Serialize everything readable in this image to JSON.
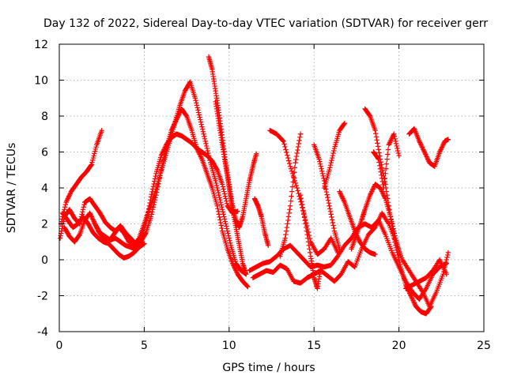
{
  "chart_data": {
    "type": "scatter",
    "title": "Day 132 of 2022, Sidereal Day-to-day VTEC variation (SDTVAR) for receiver gerr",
    "xlabel": "GPS time / hours",
    "ylabel": "SDTVAR / TECUs",
    "xlim": [
      0,
      25
    ],
    "ylim": [
      -4,
      12
    ],
    "x_ticks": [
      "0",
      "5",
      "10",
      "15",
      "20",
      "25"
    ],
    "y_ticks": [
      "-4",
      "-2",
      "0",
      "2",
      "4",
      "6",
      "8",
      "10",
      "12"
    ],
    "grid": true,
    "legend": "none",
    "marker": "plus",
    "color": "#ff0000",
    "series": [
      {
        "x": [
          0.05,
          0.3,
          0.6,
          0.9,
          1.2,
          1.5,
          1.8,
          2.1,
          2.4,
          2.7,
          3.0,
          3.3,
          3.6,
          3.9,
          4.2,
          4.5,
          4.8,
          5.1,
          5.4,
          5.7,
          6.0,
          6.3,
          6.6,
          6.9,
          7.2,
          7.5,
          7.8,
          8.1,
          8.4,
          8.7,
          9.0,
          9.3,
          9.6,
          9.9,
          10.2,
          10.5
        ],
        "y": [
          1.2,
          2.4,
          2.8,
          2.3,
          2.0,
          3.2,
          3.4,
          3.0,
          2.6,
          2.1,
          1.8,
          1.6,
          1.9,
          1.5,
          1.2,
          0.9,
          1.1,
          2.0,
          3.5,
          4.8,
          5.8,
          6.4,
          6.8,
          7.0,
          6.9,
          6.7,
          6.5,
          6.2,
          6.0,
          5.8,
          5.5,
          5.0,
          4.2,
          3.0,
          2.6,
          2.7
        ]
      },
      {
        "x": [
          0.1,
          0.4,
          0.7,
          1.0,
          1.3,
          1.6,
          1.9,
          2.2,
          2.5
        ],
        "y": [
          2.0,
          3.2,
          3.8,
          4.2,
          4.6,
          4.9,
          5.3,
          6.4,
          7.2
        ]
      },
      {
        "x": [
          0.2,
          0.5,
          0.8,
          1.1,
          1.4,
          1.7,
          2.0,
          2.3,
          2.6,
          2.9,
          3.2,
          3.5,
          3.8,
          4.1,
          4.4,
          4.7,
          5.0
        ],
        "y": [
          2.6,
          2.2,
          1.8,
          2.0,
          2.4,
          2.0,
          1.5,
          1.2,
          1.0,
          0.9,
          0.6,
          0.3,
          0.1,
          0.2,
          0.4,
          0.7,
          0.9
        ]
      },
      {
        "x": [
          0.3,
          0.6,
          0.9,
          1.2,
          1.5,
          1.8,
          2.1,
          2.4,
          2.7,
          3.0,
          3.3,
          3.6,
          3.9,
          4.2,
          4.5,
          4.8,
          5.1,
          5.4,
          5.7,
          6.0,
          6.3,
          6.6,
          6.9,
          7.2,
          7.5,
          7.8,
          8.1,
          8.4,
          8.7,
          9.0,
          9.3,
          9.6,
          9.9,
          10.2,
          10.5,
          10.8,
          11.1
        ],
        "y": [
          1.8,
          1.3,
          1.0,
          1.4,
          2.2,
          2.6,
          2.0,
          1.5,
          1.3,
          1.1,
          1.2,
          1.0,
          0.8,
          0.7,
          0.6,
          1.0,
          1.5,
          2.4,
          3.6,
          5.0,
          6.2,
          7.2,
          7.8,
          8.4,
          8.0,
          7.2,
          6.2,
          5.6,
          4.8,
          4.0,
          3.0,
          1.6,
          0.6,
          -0.2,
          -0.8,
          -1.2,
          -1.5
        ]
      },
      {
        "x": [
          2.0,
          2.3,
          2.6,
          2.9,
          3.2,
          3.5,
          3.8,
          4.1,
          4.4,
          4.7,
          5.0,
          5.3,
          5.6,
          5.9,
          6.2,
          6.5,
          6.8,
          7.1,
          7.4,
          7.7,
          8.0,
          8.3,
          8.6,
          8.9,
          9.2,
          9.5,
          9.8,
          10.1,
          10.4,
          10.7,
          11.0
        ],
        "y": [
          2.2,
          1.6,
          1.2,
          1.0,
          1.4,
          1.8,
          1.5,
          1.0,
          0.8,
          1.2,
          2.0,
          2.8,
          3.6,
          4.6,
          5.6,
          6.6,
          7.6,
          8.6,
          9.4,
          9.9,
          9.0,
          7.8,
          6.6,
          5.4,
          4.4,
          3.2,
          2.0,
          0.8,
          -0.2,
          -0.6,
          -0.8
        ]
      },
      {
        "x": [
          8.8,
          9.0,
          9.2,
          9.4,
          9.6,
          9.8,
          10.0,
          10.2,
          10.4,
          10.6,
          10.8,
          11.0,
          11.2,
          11.4,
          11.6
        ],
        "y": [
          11.3,
          10.6,
          9.4,
          8.2,
          6.8,
          5.4,
          4.2,
          3.0,
          2.2,
          1.8,
          2.4,
          3.4,
          4.4,
          5.2,
          5.9
        ]
      },
      {
        "x": [
          9.2,
          9.4,
          9.6,
          9.8,
          10.0,
          10.2,
          10.4,
          10.6,
          10.8,
          11.0
        ],
        "y": [
          8.8,
          7.6,
          6.4,
          5.2,
          4.0,
          2.8,
          1.8,
          0.8,
          -0.2,
          -0.8
        ]
      },
      {
        "x": [
          11.2,
          11.6,
          12.0,
          12.4,
          12.8,
          13.2,
          13.6,
          14.0,
          14.4,
          14.8,
          15.2,
          15.6,
          16.0,
          16.4,
          16.8,
          17.2,
          17.6,
          18.0,
          18.4,
          18.8,
          19.2,
          19.6,
          20.0,
          20.4,
          20.8,
          21.2,
          21.6,
          22.0,
          22.4,
          22.8
        ],
        "y": [
          -0.6,
          -0.4,
          -0.2,
          -0.1,
          0.2,
          0.6,
          0.8,
          0.4,
          0.0,
          -0.4,
          -0.3,
          -0.4,
          -0.3,
          0.2,
          0.8,
          1.2,
          1.8,
          2.0,
          1.8,
          2.2,
          1.4,
          0.4,
          -0.4,
          -1.2,
          -1.8,
          -2.2,
          -1.6,
          -0.8,
          -0.4,
          -0.2
        ]
      },
      {
        "x": [
          11.4,
          11.8,
          12.2,
          12.6,
          13.0,
          13.4,
          13.8,
          14.2,
          14.6,
          15.0,
          15.4,
          15.8,
          16.2,
          16.6,
          17.0,
          17.4,
          17.8,
          18.2,
          18.6,
          19.0,
          19.4,
          19.8,
          20.2,
          20.6,
          21.0,
          21.4,
          21.8,
          22.2,
          22.6,
          22.9
        ],
        "y": [
          -1.0,
          -0.8,
          -0.6,
          -0.7,
          -0.3,
          -0.5,
          -1.2,
          -1.3,
          -1.0,
          -0.8,
          -0.6,
          -0.9,
          -1.2,
          -0.8,
          -0.1,
          -0.4,
          0.6,
          1.4,
          1.8,
          2.6,
          2.0,
          1.0,
          0.0,
          -0.6,
          -1.2,
          -1.8,
          -2.6,
          -1.8,
          -0.8,
          0.4
        ]
      },
      {
        "x": [
          11.5,
          11.7,
          11.9,
          12.1,
          12.3
        ],
        "y": [
          3.4,
          3.0,
          2.4,
          1.5,
          0.8
        ]
      },
      {
        "x": [
          12.4,
          12.8,
          13.2,
          13.6,
          14.0,
          14.4,
          14.8,
          15.2,
          15.6,
          16.0,
          16.4
        ],
        "y": [
          7.2,
          7.0,
          6.6,
          5.2,
          4.0,
          2.6,
          1.0,
          0.3,
          0.6,
          1.2,
          0.4
        ]
      },
      {
        "x": [
          13.0,
          13.3,
          13.6,
          13.9,
          14.2
        ],
        "y": [
          0.2,
          1.2,
          3.0,
          5.4,
          7.0
        ]
      },
      {
        "x": [
          14.2,
          14.5,
          14.8,
          15.0,
          15.2,
          15.4
        ],
        "y": [
          3.6,
          2.0,
          0.2,
          -1.0,
          -1.6,
          -0.4
        ]
      },
      {
        "x": [
          15.0,
          15.3,
          15.6,
          15.9,
          16.2,
          16.5
        ],
        "y": [
          6.4,
          5.6,
          4.4,
          3.0,
          1.6,
          0.6
        ]
      },
      {
        "x": [
          15.6,
          15.9,
          16.2,
          16.5,
          16.8
        ],
        "y": [
          4.0,
          5.0,
          6.2,
          7.2,
          7.6
        ]
      },
      {
        "x": [
          16.5,
          16.8,
          17.1,
          17.4,
          17.7,
          18.0,
          18.3,
          18.6
        ],
        "y": [
          3.8,
          3.2,
          2.4,
          1.6,
          1.0,
          0.6,
          0.4,
          0.3
        ]
      },
      {
        "x": [
          18.0,
          18.3,
          18.6,
          18.9,
          19.2,
          19.5,
          19.8,
          20.1,
          20.4,
          20.7,
          21.0,
          21.3,
          21.6,
          21.9
        ],
        "y": [
          8.4,
          8.0,
          7.2,
          5.6,
          4.2,
          2.4,
          0.8,
          -0.4,
          -1.4,
          -2.0,
          -2.6,
          -2.9,
          -3.0,
          -2.6
        ]
      },
      {
        "x": [
          17.2,
          17.5,
          17.8,
          18.0,
          18.3,
          18.6,
          18.9,
          19.2,
          19.5,
          19.8,
          20.1
        ],
        "y": [
          0.6,
          1.4,
          2.2,
          2.8,
          3.6,
          4.2,
          4.0,
          3.4,
          2.4,
          1.2,
          0.2
        ]
      },
      {
        "x": [
          18.5,
          18.8,
          19.1,
          19.4,
          19.7,
          20.0
        ],
        "y": [
          6.0,
          5.6,
          4.0,
          6.4,
          7.0,
          5.8
        ]
      },
      {
        "x": [
          20.6,
          20.9,
          21.2,
          21.5,
          21.8,
          22.1,
          22.4,
          22.7,
          22.9
        ],
        "y": [
          7.0,
          7.3,
          6.6,
          6.0,
          5.4,
          5.2,
          6.0,
          6.6,
          6.7
        ]
      },
      {
        "x": [
          20.4,
          20.8,
          21.2,
          21.6,
          22.0,
          22.4,
          22.8
        ],
        "y": [
          -1.6,
          -1.4,
          -1.2,
          -1.0,
          -0.6,
          0.0,
          -0.8
        ]
      }
    ]
  }
}
